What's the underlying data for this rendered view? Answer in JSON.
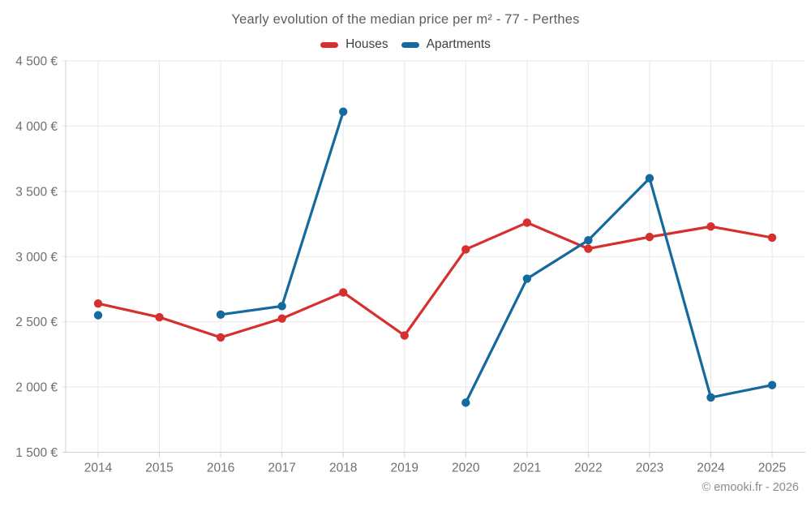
{
  "title": "Yearly evolution of the median price per m² - 77 - Perthes",
  "footer": "© emooki.fr - 2026",
  "colors": {
    "houses": "#d6302e",
    "apartments": "#14699f",
    "grid": "#e8e8e8",
    "axis": "#cfcfcf",
    "tick_label": "#6f6f6f"
  },
  "legend": {
    "items": [
      {
        "label": "Houses",
        "color": "#d6302e"
      },
      {
        "label": "Apartments",
        "color": "#14699f"
      }
    ]
  },
  "chart_data": {
    "type": "line",
    "title": "Yearly evolution of the median price per m² - 77 - Perthes",
    "categories": [
      "2014",
      "2015",
      "2016",
      "2017",
      "2018",
      "2019",
      "2020",
      "2021",
      "2022",
      "2023",
      "2024",
      "2025"
    ],
    "series": [
      {
        "name": "Houses",
        "color": "#d6302e",
        "values": [
          2640,
          2535,
          2380,
          2525,
          2725,
          2395,
          3055,
          3260,
          3060,
          3150,
          3230,
          3145
        ]
      },
      {
        "name": "Apartments",
        "color": "#14699f",
        "values": [
          2550,
          null,
          2555,
          2620,
          4110,
          null,
          1880,
          2830,
          3125,
          3600,
          1920,
          2015
        ]
      }
    ],
    "xlabel": "",
    "ylabel": "",
    "ylim": [
      1500,
      4500
    ],
    "ytick_step": 500,
    "ytick_labels": [
      "1 500 €",
      "2 000 €",
      "2 500 €",
      "3 000 €",
      "3 500 €",
      "4 000 €",
      "4 500 €"
    ],
    "grid": true,
    "legend_position": "top"
  }
}
